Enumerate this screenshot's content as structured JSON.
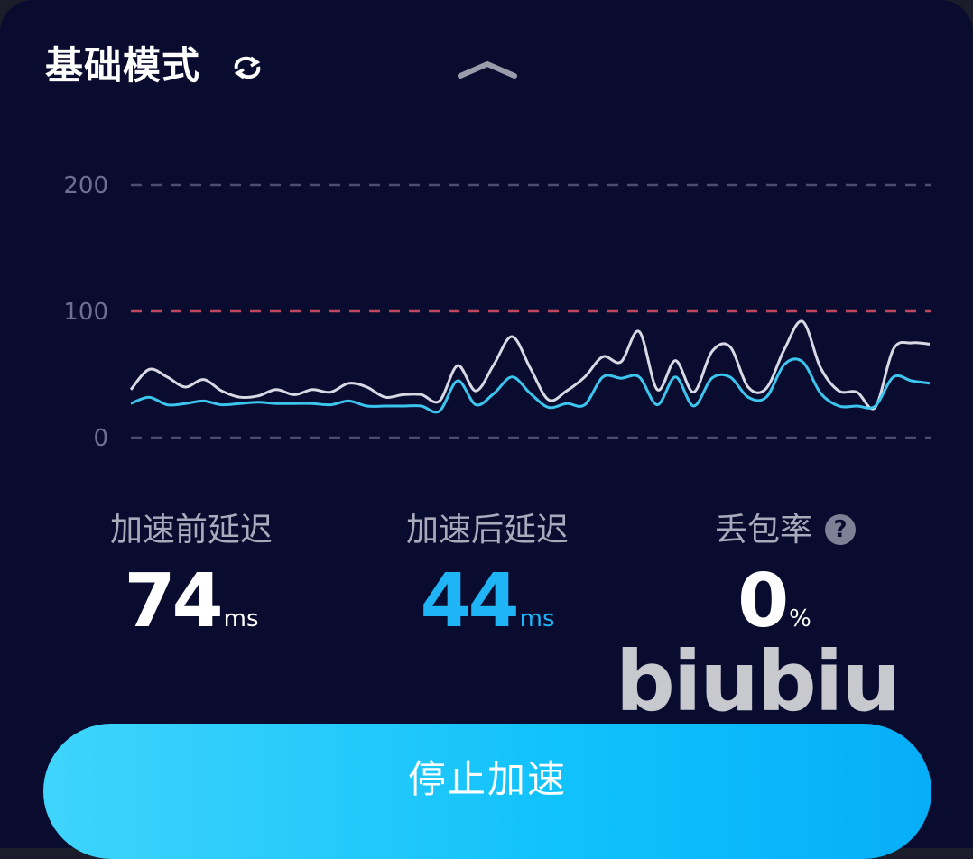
{
  "header": {
    "title": "基础模式",
    "refresh_icon": "refresh-icon",
    "collapse_icon": "chevron-up-icon"
  },
  "chart_data": {
    "type": "line",
    "y_ticks": [
      "200",
      "100",
      "0"
    ],
    "ylim": [
      0,
      200
    ],
    "threshold": 100,
    "threshold_color": "#c0485e",
    "grid": "dashed",
    "series": [
      {
        "color": "#d9d9e6",
        "values": [
          38,
          54,
          48,
          40,
          46,
          37,
          32,
          33,
          38,
          34,
          38,
          36,
          43,
          40,
          32,
          34,
          34,
          29,
          57,
          37,
          58,
          80,
          55,
          30,
          37,
          48,
          64,
          60,
          84,
          38,
          61,
          36,
          68,
          72,
          40,
          39,
          70,
          92,
          55,
          37,
          36,
          24,
          70,
          75,
          74
        ]
      },
      {
        "color": "#3cc6ef",
        "values": [
          27,
          32,
          26,
          27,
          29,
          26,
          27,
          28,
          27,
          27,
          27,
          26,
          29,
          25,
          25,
          25,
          25,
          21,
          45,
          26,
          35,
          48,
          35,
          24,
          27,
          26,
          48,
          47,
          48,
          26,
          48,
          25,
          47,
          48,
          32,
          32,
          58,
          60,
          35,
          25,
          25,
          25,
          48,
          45,
          43
        ]
      }
    ]
  },
  "stats": [
    {
      "label": "加速前延迟",
      "value": "74",
      "unit": "ms",
      "color": "#ffffff"
    },
    {
      "label": "加速后延迟",
      "value": "44",
      "unit": "ms",
      "color": "#1fb4f5"
    },
    {
      "label": "丢包率",
      "value": "0",
      "unit": "%",
      "color": "#ffffff",
      "help": "?"
    }
  ],
  "watermark": "biubiu",
  "button": {
    "label": "停止加速"
  }
}
